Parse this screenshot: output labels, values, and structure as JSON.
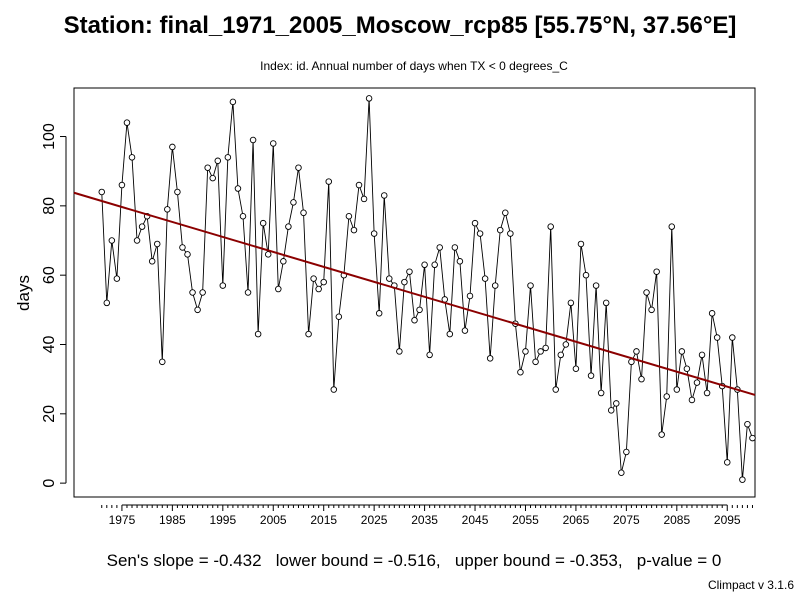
{
  "title": "Station: final_1971_2005_Moscow_rcp85 [55.75°N, 37.56°E]",
  "subtitle": "Index: id. Annual number of days when TX < 0 degrees_C",
  "stats_line": "Sen's slope = -0.432   lower bound = -0.516,   upper bound = -0.353,   p-value = 0",
  "credit": "Climpact v 3.1.6",
  "chart_data": {
    "type": "line",
    "title": "Station: final_1971_2005_Moscow_rcp85 [55.75°N, 37.56°E]",
    "subtitle": "Index: id. Annual number of days when TX < 0 degrees_C",
    "xlabel": "",
    "ylabel": "days",
    "xlim": [
      1965.5,
      2100.5
    ],
    "ylim": [
      -4,
      114
    ],
    "x_ticks": [
      1975,
      1985,
      1995,
      2005,
      2015,
      2025,
      2035,
      2045,
      2055,
      2065,
      2075,
      2085,
      2095
    ],
    "y_ticks": [
      0,
      20,
      40,
      60,
      80,
      100
    ],
    "grid": false,
    "series": [
      {
        "x": [
          1971,
          1972,
          1973,
          1974,
          1975,
          1976,
          1977,
          1978,
          1979,
          1980,
          1981,
          1982,
          1983,
          1984,
          1985,
          1986,
          1987,
          1988,
          1989,
          1990,
          1991,
          1992,
          1993,
          1994,
          1995,
          1996,
          1997,
          1998,
          1999,
          2000,
          2001,
          2002,
          2003,
          2004,
          2005,
          2006,
          2007,
          2008,
          2009,
          2010,
          2011,
          2012,
          2013,
          2014,
          2015,
          2016,
          2017,
          2018,
          2019,
          2020,
          2021,
          2022,
          2023,
          2024,
          2025,
          2026,
          2027,
          2028,
          2029,
          2030,
          2031,
          2032,
          2033,
          2034,
          2035,
          2036,
          2037,
          2038,
          2039,
          2040,
          2041,
          2042,
          2043,
          2044,
          2045,
          2046,
          2047,
          2048,
          2049,
          2050,
          2051,
          2052,
          2053,
          2054,
          2055,
          2056,
          2057,
          2058,
          2059,
          2060,
          2061,
          2062,
          2063,
          2064,
          2065,
          2066,
          2067,
          2068,
          2069,
          2070,
          2071,
          2072,
          2073,
          2074,
          2075,
          2076,
          2077,
          2078,
          2079,
          2080,
          2081,
          2082,
          2083,
          2084,
          2085,
          2086,
          2087,
          2088,
          2089,
          2090,
          2091,
          2092,
          2093,
          2094,
          2095,
          2096,
          2097,
          2098,
          2099,
          2100
        ],
        "values": [
          84,
          52,
          70,
          59,
          86,
          104,
          94,
          70,
          74,
          77,
          64,
          69,
          35,
          79,
          97,
          84,
          68,
          66,
          55,
          50,
          55,
          91,
          88,
          93,
          57,
          94,
          110,
          85,
          77,
          55,
          99,
          43,
          75,
          66,
          98,
          56,
          64,
          74,
          81,
          91,
          78,
          43,
          59,
          56,
          58,
          87,
          27,
          48,
          60,
          77,
          73,
          86,
          82,
          111,
          72,
          49,
          83,
          59,
          57,
          38,
          58,
          61,
          47,
          50,
          63,
          37,
          63,
          68,
          53,
          43,
          68,
          64,
          44,
          54,
          75,
          72,
          59,
          36,
          57,
          73,
          78,
          72,
          46,
          32,
          38,
          57,
          35,
          38,
          39,
          74,
          27,
          37,
          40,
          52,
          33,
          69,
          60,
          31,
          57,
          26,
          52,
          21,
          23,
          3,
          9,
          35,
          38,
          30,
          55,
          50,
          61,
          14,
          25,
          74,
          27,
          38,
          33,
          24,
          29,
          37,
          26,
          49,
          42,
          28,
          6,
          42,
          27,
          1,
          17,
          13
        ]
      }
    ],
    "trend_line": {
      "slope": -0.432,
      "intercept_at_1971": 81.4,
      "color": "#8b0000"
    },
    "colors": {
      "line": "#000000",
      "points": "#000000",
      "trend": "#8b0000",
      "axes": "#000000"
    }
  }
}
